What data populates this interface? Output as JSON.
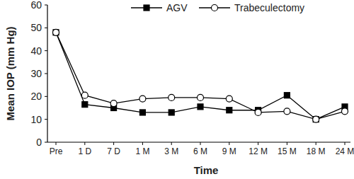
{
  "chart_data": {
    "type": "line",
    "x_label": "Time",
    "y_label": "Mean IOP (mm Hg)",
    "categories": [
      "Pre",
      "1 D",
      "7 D",
      "1 M",
      "3 M",
      "6 M",
      "9 M",
      "12 M",
      "15 M",
      "18 M",
      "24 M"
    ],
    "series": [
      {
        "name": "AGV",
        "color": "#000000",
        "marker": "filled-square",
        "line_style": "solid",
        "values": [
          48,
          16.5,
          15,
          13,
          13,
          15.5,
          14,
          14,
          20.5,
          10,
          15.5
        ]
      },
      {
        "name": "Trabeculectomy",
        "color": "#000000",
        "marker": "open-circle",
        "line_style": "solid",
        "values": [
          48,
          20.5,
          17,
          19,
          19.5,
          19.5,
          19,
          13,
          13.5,
          10,
          13.5
        ]
      }
    ],
    "ylim": [
      0,
      60
    ],
    "yticks": [
      0,
      10,
      20,
      30,
      40,
      50,
      60
    ],
    "grid": false,
    "legend": "top"
  }
}
